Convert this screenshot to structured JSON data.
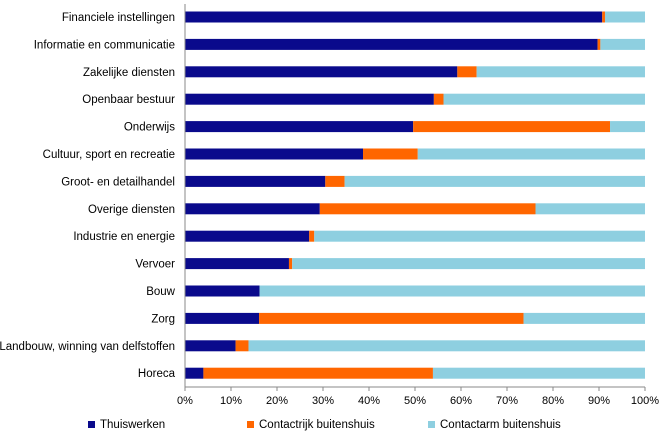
{
  "chart_data": {
    "type": "bar",
    "orientation": "horizontal",
    "stacked": true,
    "percent": true,
    "categories": [
      "Financiele instellingen",
      "Informatie en communicatie",
      "Zakelijke diensten",
      "Openbaar bestuur",
      "Onderwijs",
      "Cultuur, sport en recreatie",
      "Groot- en detailhandel",
      "Overige diensten",
      "Industrie en energie",
      "Vervoer",
      "Bouw",
      "Zorg",
      "Landbouw, winning van delfstoffen",
      "Horeca"
    ],
    "series": [
      {
        "name": "Thuiswerken",
        "color": "#0a0a8c",
        "values": [
          90.7,
          89.7,
          59.2,
          54.1,
          49.6,
          38.7,
          30.5,
          29.3,
          27.0,
          22.6,
          16.2,
          16.1,
          11.0,
          4.0
        ]
      },
      {
        "name": "Contactrijk buitenshuis",
        "color": "#ff6600",
        "values": [
          0.6,
          0.6,
          4.2,
          2.1,
          42.8,
          11.9,
          4.2,
          46.9,
          1.1,
          0.7,
          0.0,
          57.5,
          2.8,
          49.9
        ]
      },
      {
        "name": "Contactarm buitenshuis",
        "color": "#8ecfe0",
        "values": [
          8.7,
          9.7,
          36.6,
          43.8,
          7.6,
          49.4,
          65.3,
          23.8,
          71.9,
          76.7,
          83.8,
          26.4,
          86.2,
          46.1
        ]
      }
    ],
    "xlim": [
      0,
      100
    ],
    "xticks": [
      "0%",
      "10%",
      "20%",
      "30%",
      "40%",
      "50%",
      "60%",
      "70%",
      "80%",
      "90%",
      "100%"
    ],
    "grid": false,
    "legend_position": "bottom"
  }
}
